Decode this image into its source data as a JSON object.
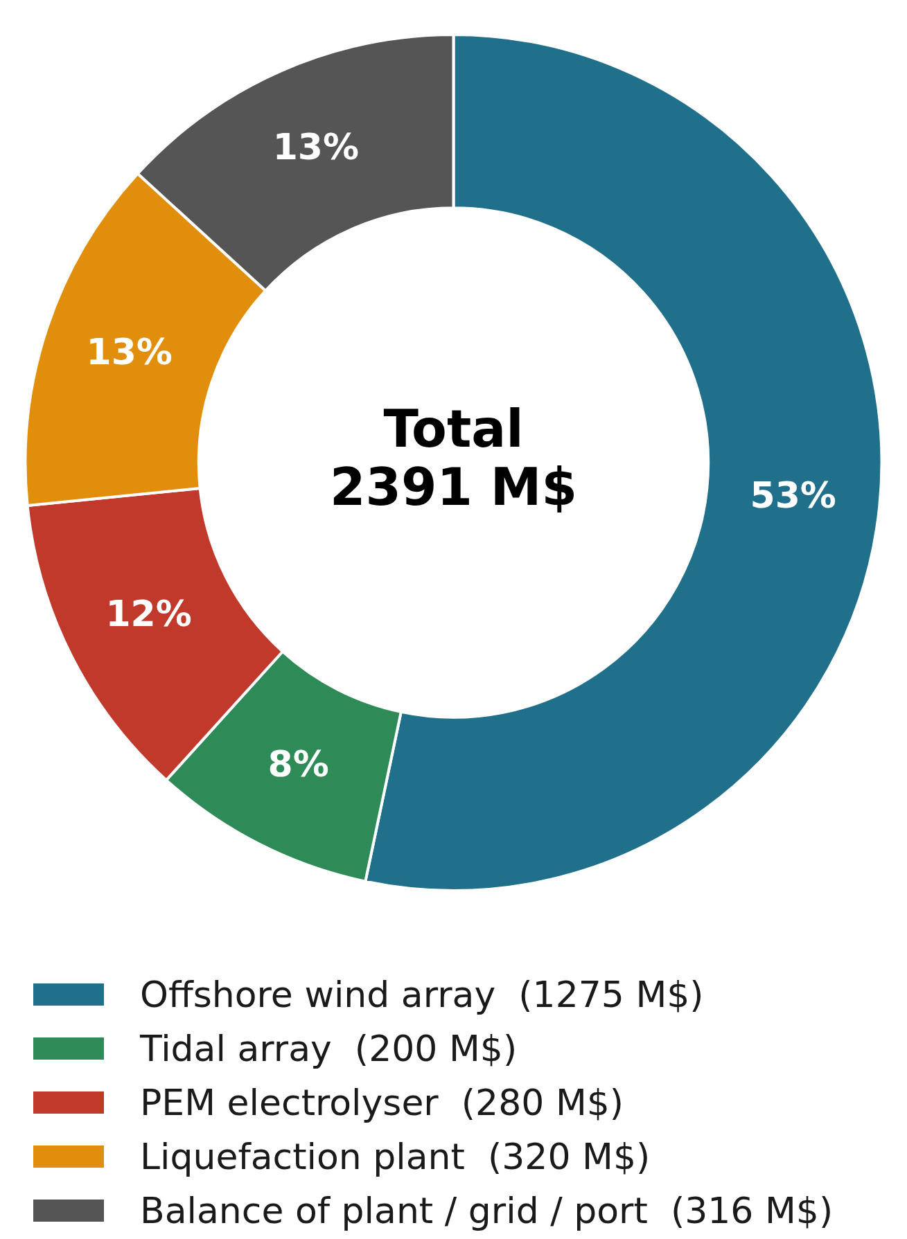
{
  "chart_data": {
    "type": "donut",
    "categories": [
      "Offshore wind array  (1275 M$)",
      "Tidal array  (200 M$)",
      "PEM electrolyser  (280 M$)",
      "Liquefaction plant  (320 M$)",
      "Balance of plant / grid / port  (316 M$)"
    ],
    "values": [
      53.3,
      8.4,
      11.7,
      13.4,
      13.2
    ],
    "colors": [
      "#21708b",
      "#2e8b57",
      "#c0392b",
      "#e08e0b",
      "#555555"
    ],
    "value_labels": [
      "53%",
      "8%",
      "12%",
      "13%",
      "13%"
    ],
    "annotations": [
      "Total",
      "2391 M$"
    ],
    "legend": "bottom"
  }
}
